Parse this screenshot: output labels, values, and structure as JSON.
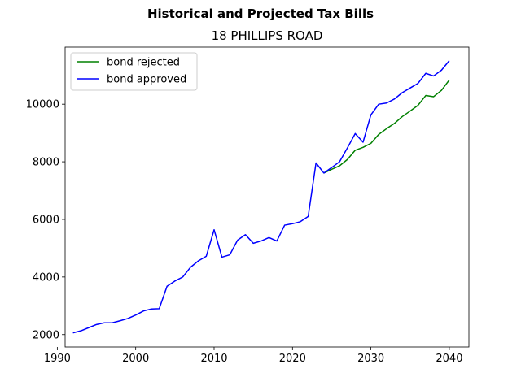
{
  "suptitle": "Historical and Projected Tax Bills",
  "chart_data": {
    "type": "line",
    "title": "18 PHILLIPS ROAD",
    "xlabel": "",
    "ylabel": "",
    "xlim": [
      1991,
      2042.5
    ],
    "ylim": [
      1570,
      11980
    ],
    "xticks": [
      1990,
      2000,
      2010,
      2020,
      2030,
      2040
    ],
    "yticks": [
      2000,
      4000,
      6000,
      8000,
      10000
    ],
    "grid": false,
    "legend_position": "top-left",
    "series": [
      {
        "name": "bond rejected",
        "color": "#008000",
        "x": [
          2024,
          2025,
          2026,
          2027,
          2028,
          2029,
          2030,
          2031,
          2032,
          2033,
          2034,
          2035,
          2036,
          2037,
          2038,
          2039,
          2040
        ],
        "values": [
          7610,
          7740,
          7860,
          8080,
          8400,
          8500,
          8640,
          8950,
          9150,
          9330,
          9570,
          9760,
          9960,
          10300,
          10260,
          10480,
          10840
        ]
      },
      {
        "name": "bond approved",
        "color": "#0000ff",
        "x": [
          1992,
          1993,
          1994,
          1995,
          1996,
          1997,
          1998,
          1999,
          2000,
          2001,
          2002,
          2003,
          2004,
          2005,
          2006,
          2007,
          2008,
          2009,
          2010,
          2011,
          2012,
          2013,
          2014,
          2015,
          2016,
          2017,
          2018,
          2019,
          2020,
          2021,
          2022,
          2023,
          2024,
          2025,
          2026,
          2027,
          2028,
          2029,
          2030,
          2031,
          2032,
          2033,
          2034,
          2035,
          2036,
          2037,
          2038,
          2039,
          2040
        ],
        "values": [
          2060,
          2130,
          2240,
          2350,
          2410,
          2410,
          2480,
          2560,
          2680,
          2820,
          2890,
          2900,
          3680,
          3860,
          4000,
          4340,
          4560,
          4720,
          5640,
          4690,
          4770,
          5280,
          5470,
          5170,
          5250,
          5370,
          5250,
          5800,
          5850,
          5920,
          6100,
          7960,
          7610,
          7800,
          8000,
          8480,
          8980,
          8680,
          9630,
          10000,
          10040,
          10180,
          10400,
          10560,
          10720,
          11070,
          10980,
          11180,
          11510
        ]
      }
    ]
  }
}
